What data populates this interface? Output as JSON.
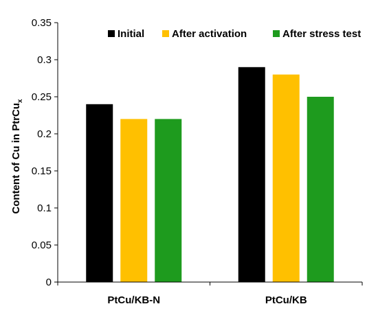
{
  "chart_data": {
    "type": "bar",
    "categories": [
      "PtCu/KB-N",
      "PtCu/KB"
    ],
    "series": [
      {
        "name": "Initial",
        "color": "#000000",
        "values": [
          0.24,
          0.29
        ]
      },
      {
        "name": "After activation",
        "color": "#FFC000",
        "values": [
          0.22,
          0.28
        ]
      },
      {
        "name": "After stress test",
        "color": "#1E9B1E",
        "values": [
          0.22,
          0.25
        ]
      }
    ],
    "title": "",
    "xlabel": "",
    "ylabel": "Content of Cu in PtrCux",
    "ylim": [
      0,
      0.35
    ],
    "yticks": [
      "0",
      "0.05",
      "0.1",
      "0.15",
      "0.2",
      "0.25",
      "0.3",
      "0.35"
    ],
    "grid": false,
    "legend_position": "top"
  }
}
